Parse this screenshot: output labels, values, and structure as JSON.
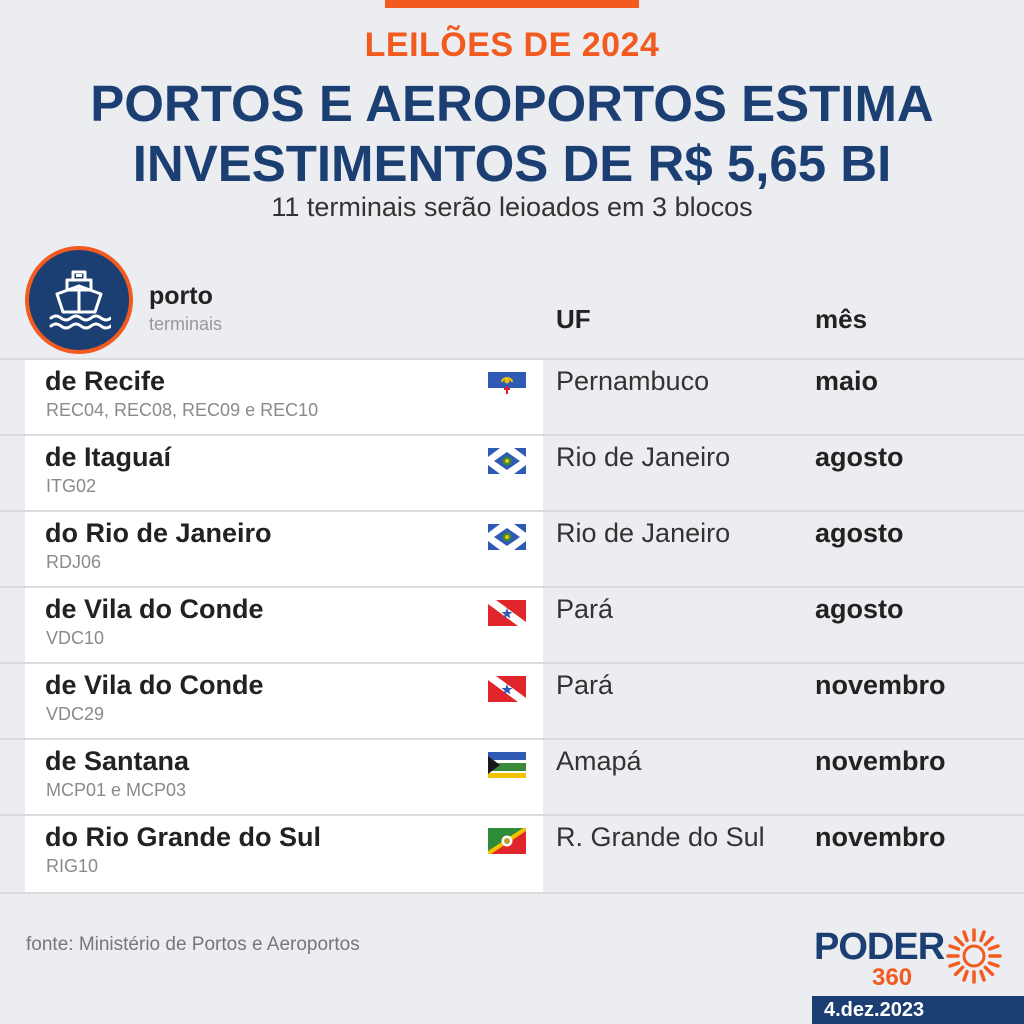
{
  "kicker": "LEILÕES DE 2024",
  "headline": {
    "line1": "PORTOS E AEROPORTOS ESTIMA",
    "line2": "INVESTIMENTOS DE R$ 5,65 BI"
  },
  "subtitle": "11 terminais serão leioados em 3 blocos",
  "header": {
    "icon": "ship-icon",
    "porto": "porto",
    "terminais": "terminais",
    "uf": "UF",
    "mes": "mês"
  },
  "rows": [
    {
      "port": "de Recife",
      "codes": "REC04, REC08, REC09 e REC10",
      "flag": "pernambuco-flag-icon",
      "uf": "Pernambuco",
      "mes": "maio"
    },
    {
      "port": "de Itaguaí",
      "codes": "ITG02",
      "flag": "rio-de-janeiro-flag-icon",
      "uf": "Rio de Janeiro",
      "mes": "agosto"
    },
    {
      "port": "do Rio de Janeiro",
      "codes": "RDJ06",
      "flag": "rio-de-janeiro-flag-icon",
      "uf": "Rio de Janeiro",
      "mes": "agosto"
    },
    {
      "port": "de Vila do Conde",
      "codes": "VDC10",
      "flag": "para-flag-icon",
      "uf": "Pará",
      "mes": "agosto"
    },
    {
      "port": "de Vila do Conde",
      "codes": "VDC29",
      "flag": "para-flag-icon",
      "uf": "Pará",
      "mes": "novembro"
    },
    {
      "port": "de Santana",
      "codes": "MCP01 e MCP03",
      "flag": "amapa-flag-icon",
      "uf": "Amapá",
      "mes": "novembro"
    },
    {
      "port": "do Rio Grande do Sul",
      "codes": "RIG10",
      "flag": "rio-grande-do-sul-flag-icon",
      "uf": "R. Grande do Sul",
      "mes": "novembro"
    }
  ],
  "source": "fonte: Ministério de Portos e Aeroportos",
  "logo": {
    "name": "PODER",
    "number": "360"
  },
  "date": "4.dez.2023",
  "colors": {
    "accent": "#f25a1f",
    "navy": "#1c3f73",
    "background": "#ebedf0"
  }
}
